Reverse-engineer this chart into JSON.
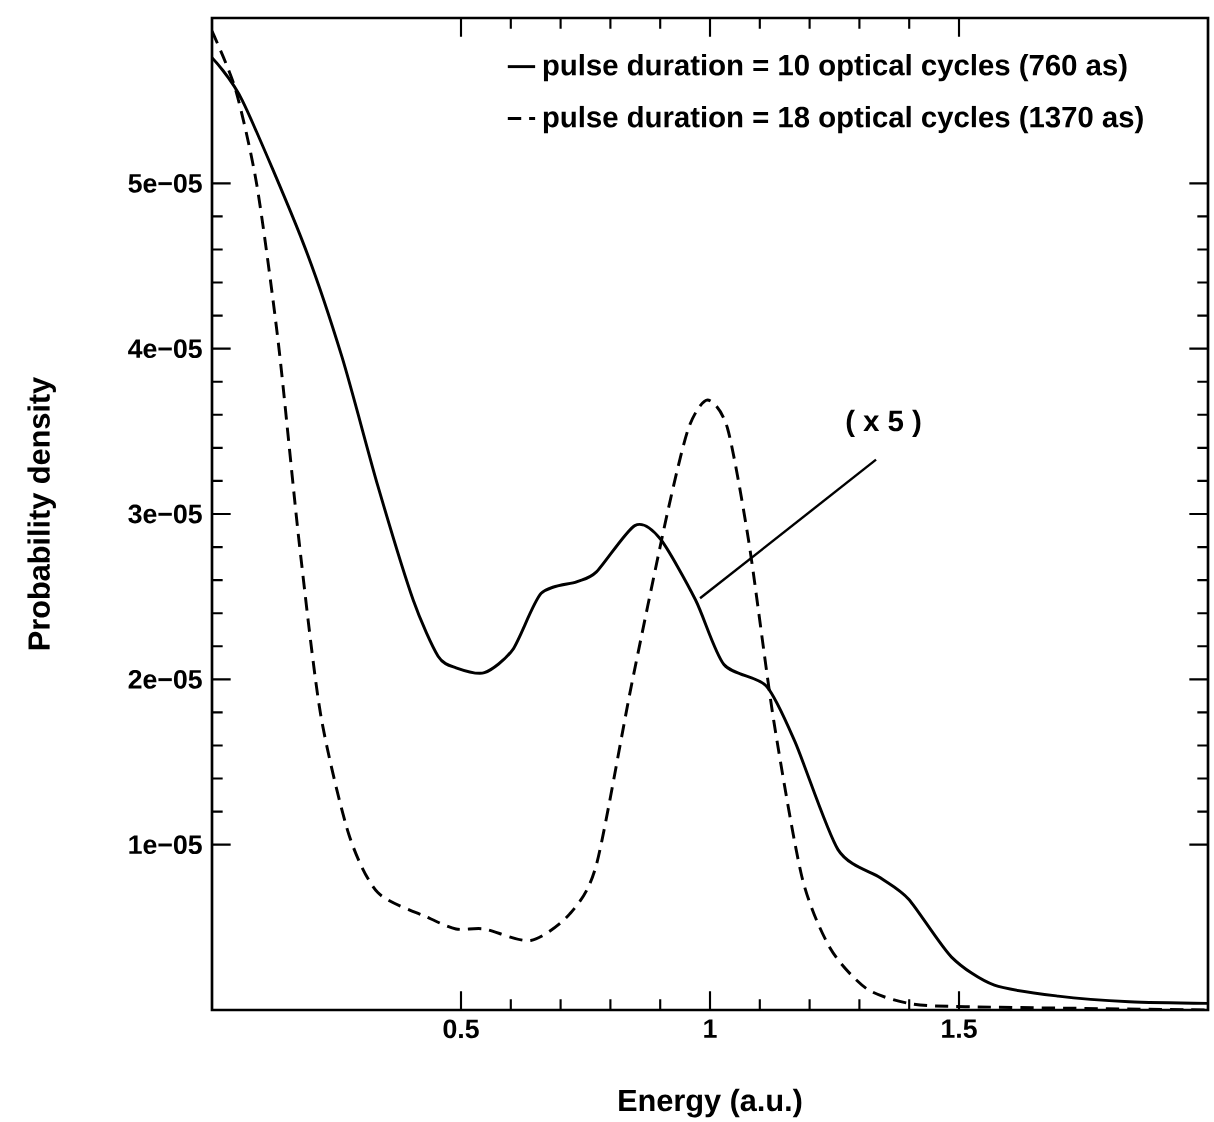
{
  "chart_data": {
    "type": "line",
    "xlabel": "Energy (a.u.)",
    "ylabel": "Probability density",
    "xlim": [
      0,
      2
    ],
    "ylim": [
      0,
      6e-05
    ],
    "xticks": [
      0.5,
      1,
      1.5
    ],
    "yticks": [
      {
        "value": 1e-05,
        "label": "1e−05"
      },
      {
        "value": 2e-05,
        "label": "2e−05"
      },
      {
        "value": 3e-05,
        "label": "3e−05"
      },
      {
        "value": 4e-05,
        "label": "4e−05"
      },
      {
        "value": 5e-05,
        "label": "5e−05"
      }
    ],
    "grid": false,
    "legend": "top right",
    "marker": "none",
    "annotations": [
      {
        "text": "( x 5 )",
        "x": 0.98,
        "y": 2.49e-05
      }
    ],
    "series": [
      {
        "name": "pulse duration = 10 optical cycles (760 as)",
        "color": "#000000",
        "line_style": "solid",
        "x": [
          0,
          0.061,
          0.183,
          0.261,
          0.333,
          0.404,
          0.454,
          0.49,
          0.547,
          0.604,
          0.661,
          0.732,
          0.772,
          0.849,
          0.9,
          0.971,
          1.028,
          1.113,
          1.171,
          1.257,
          1.342,
          1.399,
          1.485,
          1.571,
          1.699,
          1.842,
          2.0
        ],
        "values": [
          5.76e-05,
          5.5e-05,
          4.64e-05,
          3.95e-05,
          3.17e-05,
          2.48e-05,
          2.14e-05,
          2.07e-05,
          2.04e-05,
          2.18e-05,
          2.52e-05,
          2.59e-05,
          2.65e-05,
          2.93e-05,
          2.85e-05,
          2.48e-05,
          2.09e-05,
          1.96e-05,
          1.62e-05,
          9.7e-06,
          8e-06,
          6.7e-06,
          3.2e-06,
          1.5e-06,
          8.4e-07,
          5e-07,
          4e-07
        ]
      },
      {
        "name": "pulse duration = 18 optical cycles (1370 as)",
        "color": "#000000",
        "line_style": "dashed",
        "x": [
          0,
          0.047,
          0.09,
          0.133,
          0.175,
          0.218,
          0.275,
          0.333,
          0.433,
          0.49,
          0.547,
          0.64,
          0.718,
          0.772,
          0.842,
          0.914,
          0.957,
          0.995,
          1.035,
          1.078,
          1.128,
          1.185,
          1.242,
          1.314,
          1.399,
          1.513,
          2.0
        ],
        "values": [
          5.92e-05,
          5.57e-05,
          4.99e-05,
          4.04e-05,
          2.83e-05,
          1.79e-05,
          1.06e-05,
          7.1e-06,
          5.6e-06,
          4.9e-06,
          4.9e-06,
          4.2e-06,
          5.8e-06,
          8.8e-06,
          1.96e-05,
          3e-05,
          3.52e-05,
          3.69e-05,
          3.52e-05,
          2.83e-05,
          1.75e-05,
          8e-06,
          3.7e-06,
          1.3e-06,
          4e-07,
          2e-07,
          0.0
        ]
      }
    ]
  }
}
